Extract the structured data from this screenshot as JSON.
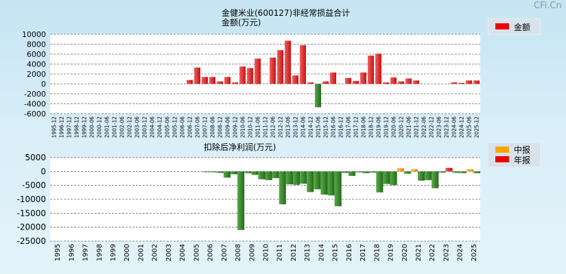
{
  "watermark": "CFi.Cn",
  "chart_data": [
    {
      "type": "bar",
      "title": "金健米业(600127)非经常损益合计",
      "ylabel": "金额(万元)",
      "ylim": [
        -6000,
        10000
      ],
      "yticks": [
        10000,
        8000,
        6000,
        4000,
        2000,
        0,
        -2000,
        -4000,
        -6000
      ],
      "legend": [
        {
          "name": "金额",
          "color": "#ee0000"
        }
      ],
      "categories": [
        "1995-12",
        "1996-12",
        "1997-12",
        "1998-12",
        "1999-12",
        "2000-06",
        "2000-12",
        "2001-06",
        "2001-12",
        "2002-06",
        "2002-12",
        "2003-06",
        "2003-12",
        "2004-06",
        "2004-12",
        "2005-06",
        "2005-12",
        "2006-06",
        "2006-12",
        "2007-06",
        "2007-12",
        "2008-06",
        "2008-12",
        "2009-06",
        "2009-12",
        "2010-06",
        "2010-12",
        "2011-06",
        "2011-12",
        "2012-06",
        "2012-12",
        "2013-06",
        "2013-12",
        "2014-06",
        "2014-12",
        "2015-06",
        "2015-12",
        "2016-06",
        "2016-12",
        "2017-06",
        "2017-12",
        "2018-06",
        "2018-12",
        "2019-06",
        "2019-12",
        "2020-06",
        "2020-12",
        "2021-06",
        "2021-12",
        "2022-06",
        "2022-12",
        "2023-06",
        "2023-12",
        "2024-06",
        "2024-12",
        "2025-06",
        "2025-12"
      ],
      "values": [
        0,
        0,
        0,
        0,
        0,
        0,
        0,
        0,
        0,
        0,
        0,
        0,
        0,
        0,
        0,
        0,
        0,
        0,
        800,
        3300,
        1400,
        1400,
        500,
        1400,
        300,
        3500,
        3200,
        5100,
        0,
        5300,
        6800,
        8700,
        1700,
        7800,
        300,
        -4700,
        500,
        2300,
        0,
        1200,
        600,
        2300,
        5700,
        6100,
        300,
        1300,
        500,
        1100,
        700,
        0,
        0,
        0,
        0,
        300,
        200,
        700,
        700
      ]
    },
    {
      "type": "bar",
      "title": "扣除后净利润(万元)",
      "ylim": [
        -25000,
        5000
      ],
      "yticks": [
        5000,
        0,
        -5000,
        -10000,
        -15000,
        -20000,
        -25000
      ],
      "legend": [
        {
          "name": "中报",
          "color": "#ffa500"
        },
        {
          "name": "年报",
          "color": "#ee0000"
        }
      ],
      "years": [
        "1995",
        "1996",
        "1997",
        "1998",
        "1999",
        "2000",
        "2001",
        "2002",
        "2003",
        "2004",
        "2005",
        "2006",
        "2007",
        "2008",
        "2009",
        "2010",
        "2011",
        "2012",
        "2013",
        "2014",
        "2015",
        "2016",
        "2017",
        "2018",
        "2019",
        "2020",
        "2021",
        "2022",
        "2023",
        "2024",
        "2025"
      ],
      "series": [
        {
          "name": "中报",
          "values": [
            null,
            null,
            null,
            null,
            null,
            null,
            null,
            null,
            null,
            null,
            null,
            -200,
            -500,
            -1000,
            -600,
            -2800,
            -2400,
            -4600,
            -4400,
            -6400,
            -8600,
            -500,
            -300,
            -400,
            -4500,
            1200,
            800,
            -3100,
            -400,
            -500,
            800
          ]
        },
        {
          "name": "年报",
          "values": [
            null,
            null,
            null,
            null,
            null,
            null,
            null,
            null,
            null,
            null,
            null,
            -300,
            -2200,
            -21000,
            -1200,
            -3100,
            -11800,
            -4800,
            -7400,
            -8300,
            -12500,
            -1600,
            -600,
            -7500,
            -4900,
            -800,
            -3300,
            -6000,
            1300,
            -600,
            -600
          ]
        }
      ]
    }
  ]
}
